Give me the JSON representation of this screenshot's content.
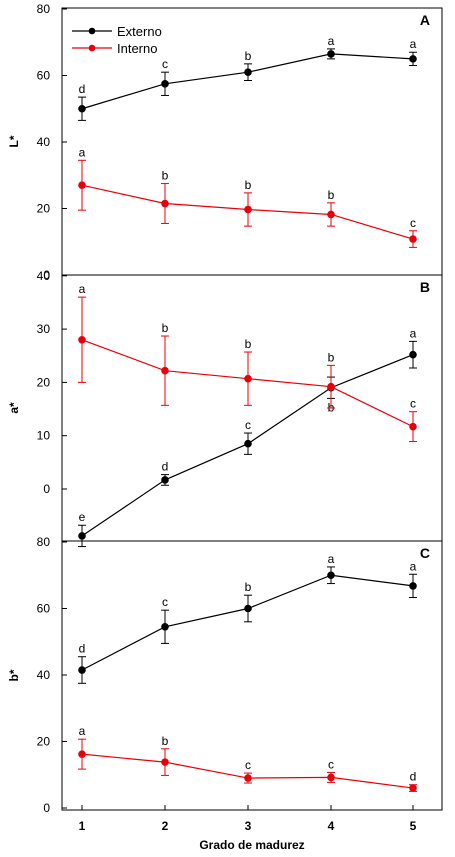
{
  "chart_data": {
    "type": "line",
    "xlabel": "Grado de madurez",
    "x": [
      1,
      2,
      3,
      4,
      5
    ],
    "xticks": [
      "1",
      "2",
      "3",
      "4",
      "5"
    ],
    "legend": {
      "placement": "top-left of panel A",
      "entries": [
        {
          "name": "Externo",
          "color": "#000000"
        },
        {
          "name": "Interno",
          "color": "#e8000b"
        }
      ]
    },
    "panels": [
      {
        "id": "A",
        "letter": "A",
        "ylabel": "L*",
        "ylim": [
          0,
          80
        ],
        "yticks": [
          "0",
          "20",
          "40",
          "60",
          "80"
        ],
        "series": [
          {
            "name": "Externo",
            "color": "#000000",
            "values": [
              50,
              57.5,
              61,
              66.5,
              65
            ],
            "errors": [
              3.5,
              3.5,
              2.5,
              1.5,
              2
            ],
            "letters": [
              "d",
              "c",
              "b",
              "a",
              "a"
            ],
            "letter_pos": [
              "above",
              "above",
              "above",
              "above",
              "above"
            ]
          },
          {
            "name": "Interno",
            "color": "#e8000b",
            "values": [
              27,
              21.5,
              19.7,
              18.2,
              10.8
            ],
            "errors": [
              7.5,
              6,
              5,
              3.5,
              2.5
            ],
            "letters": [
              "a",
              "b",
              "b",
              "b",
              "c"
            ],
            "letter_pos": [
              "above",
              "above",
              "above",
              "above",
              "above"
            ]
          }
        ]
      },
      {
        "id": "B",
        "letter": "B",
        "ylabel": "a*",
        "ylim": [
          -9,
          40
        ],
        "yticks": [
          "0",
          "10",
          "20",
          "30",
          "40"
        ],
        "series": [
          {
            "name": "Externo",
            "color": "#000000",
            "values": [
              -8.8,
              1.7,
              8.5,
              19,
              25.2
            ],
            "errors": [
              2,
              1,
              2,
              2,
              2.5
            ],
            "letters": [
              "e",
              "d",
              "c",
              "b",
              "a"
            ],
            "letter_pos": [
              "above",
              "above",
              "above",
              "below",
              "above"
            ]
          },
          {
            "name": "Interno",
            "color": "#e8000b",
            "values": [
              28,
              22.2,
              20.7,
              19.2,
              11.7
            ],
            "errors": [
              8,
              6.5,
              5,
              4,
              2.8
            ],
            "letters": [
              "a",
              "b",
              "b",
              "b",
              "c"
            ],
            "letter_pos": [
              "above",
              "above",
              "above",
              "above",
              "above"
            ]
          }
        ]
      },
      {
        "id": "C",
        "letter": "C",
        "ylabel": "b*",
        "ylim": [
          0,
          85
        ],
        "yticks": [
          "0",
          "20",
          "40",
          "60",
          "80"
        ],
        "series": [
          {
            "name": "Externo",
            "color": "#000000",
            "values": [
              41.5,
              54.5,
              60,
              70,
              66.8
            ],
            "errors": [
              4,
              5,
              4,
              2.5,
              3.5
            ],
            "letters": [
              "d",
              "c",
              "b",
              "a",
              "a"
            ],
            "letter_pos": [
              "above",
              "above",
              "above",
              "above",
              "above"
            ]
          },
          {
            "name": "Interno",
            "color": "#e8000b",
            "values": [
              16.2,
              13.8,
              9,
              9.2,
              6
            ],
            "errors": [
              4.5,
              4,
              1.5,
              1.5,
              1
            ],
            "letters": [
              "a",
              "b",
              "c",
              "c",
              "d"
            ],
            "letter_pos": [
              "above",
              "above",
              "above",
              "above",
              "above"
            ]
          }
        ]
      }
    ]
  }
}
